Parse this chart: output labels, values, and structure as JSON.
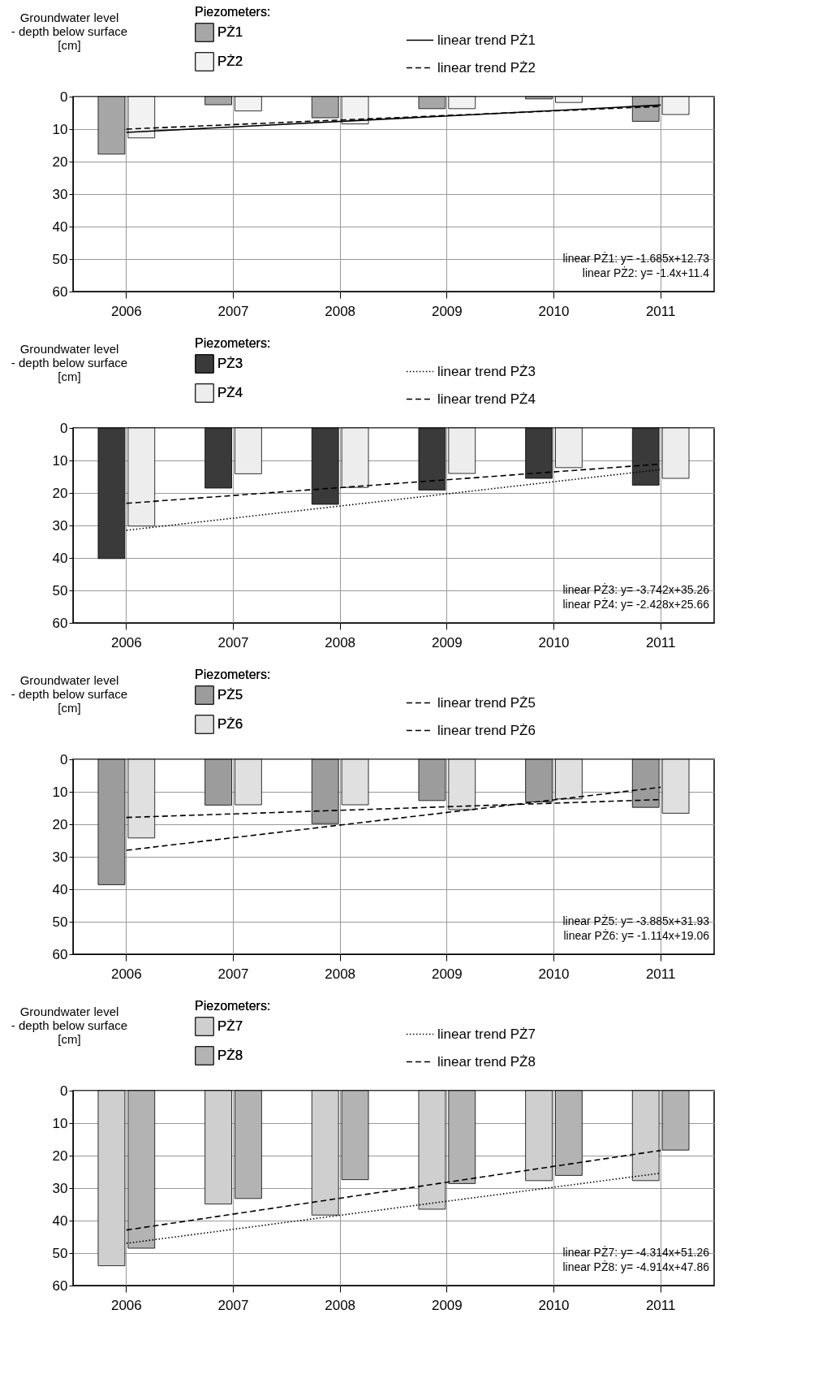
{
  "chart_data": [
    {
      "type": "bar",
      "ylabel": "Groundwater level\n- depth below surface\n[cm]",
      "legend_title": "Piezometers:",
      "legend": "top",
      "grid": true,
      "categories": [
        "2006",
        "2007",
        "2008",
        "2009",
        "2010",
        "2011"
      ],
      "ylim": [
        60,
        0
      ],
      "yticks": [
        0,
        10,
        20,
        30,
        40,
        50,
        60
      ],
      "series": [
        {
          "name": "PŻ1",
          "type": "bar",
          "color": "#a6a6a6",
          "values": [
            17.7,
            2.5,
            6.5,
            3.7,
            0.7,
            7.6
          ]
        },
        {
          "name": "PŻ2",
          "type": "bar",
          "color": "#f2f2f2",
          "values": [
            12.7,
            4.4,
            8.4,
            3.7,
            1.8,
            5.5
          ]
        },
        {
          "name": "linear trend PŻ1",
          "type": "line",
          "color": "#000000",
          "line_style": "solid",
          "values": [
            11.0,
            null,
            null,
            null,
            null,
            2.6
          ]
        },
        {
          "name": "linear trend PŻ2",
          "type": "line",
          "color": "#000000",
          "line_style": "dashed",
          "values": [
            10.0,
            null,
            null,
            null,
            null,
            3.0
          ]
        }
      ],
      "annotations": [
        "linear PŻ1: y= -1.685x+12.73",
        "linear PŻ2: y= -1.4x+11.4"
      ]
    },
    {
      "type": "bar",
      "ylabel": "Groundwater level\n- depth below surface\n[cm]",
      "legend_title": "Piezometers:",
      "legend": "top",
      "grid": true,
      "categories": [
        "2006",
        "2007",
        "2008",
        "2009",
        "2010",
        "2011"
      ],
      "ylim": [
        60,
        0
      ],
      "yticks": [
        0,
        10,
        20,
        30,
        40,
        50,
        60
      ],
      "series": [
        {
          "name": "PŻ3",
          "type": "bar",
          "color": "#3a3a3a",
          "values": [
            40.2,
            18.5,
            23.5,
            19.1,
            15.5,
            17.6
          ]
        },
        {
          "name": "PŻ4",
          "type": "bar",
          "color": "#ededed",
          "values": [
            30.2,
            14.1,
            18.3,
            14.0,
            12.2,
            15.5
          ]
        },
        {
          "name": "linear trend PŻ3",
          "type": "line",
          "color": "#000000",
          "line_style": "dotted",
          "values": [
            31.5,
            null,
            null,
            null,
            null,
            12.8
          ]
        },
        {
          "name": "linear trend PŻ4",
          "type": "line",
          "color": "#000000",
          "line_style": "dashed",
          "values": [
            23.2,
            null,
            null,
            null,
            null,
            11.1
          ]
        }
      ],
      "annotations": [
        "linear PŻ3: y= -3.742x+35.26",
        "linear PŻ4: y= -2.428x+25.66"
      ]
    },
    {
      "type": "bar",
      "ylabel": "Groundwater level\n- depth below surface\n[cm]",
      "legend_title": "Piezometers:",
      "legend": "top",
      "grid": true,
      "categories": [
        "2006",
        "2007",
        "2008",
        "2009",
        "2010",
        "2011"
      ],
      "ylim": [
        60,
        0
      ],
      "yticks": [
        0,
        10,
        20,
        30,
        40,
        50,
        60
      ],
      "series": [
        {
          "name": "PŻ5",
          "type": "bar",
          "color": "#9c9c9c",
          "values": [
            38.6,
            14.1,
            19.8,
            12.7,
            13.1,
            14.8
          ]
        },
        {
          "name": "PŻ6",
          "type": "bar",
          "color": "#e0e0e0",
          "values": [
            24.2,
            14.0,
            14.0,
            15.5,
            12.2,
            16.6
          ]
        },
        {
          "name": "linear trend PŻ5",
          "type": "line",
          "color": "#000000",
          "line_style": "dashed",
          "values": [
            28.0,
            null,
            null,
            null,
            null,
            8.6
          ]
        },
        {
          "name": "linear trend PŻ6",
          "type": "line",
          "color": "#000000",
          "line_style": "dashed",
          "values": [
            17.9,
            null,
            null,
            null,
            null,
            12.4
          ]
        }
      ],
      "annotations": [
        "linear PŻ5: y= -3.885x+31.93",
        "linear PŻ6: y= -1.114x+19.06"
      ]
    },
    {
      "type": "bar",
      "ylabel": "Groundwater level\n- depth below surface\n[cm]",
      "legend_title": "Piezometers:",
      "legend": "top",
      "grid": true,
      "categories": [
        "2006",
        "2007",
        "2008",
        "2009",
        "2010",
        "2011"
      ],
      "ylim": [
        60,
        0
      ],
      "yticks": [
        0,
        10,
        20,
        30,
        40,
        50,
        60
      ],
      "series": [
        {
          "name": "PŻ7",
          "type": "bar",
          "color": "#cfcfcf",
          "values": [
            53.9,
            34.9,
            38.3,
            36.5,
            27.7,
            27.7
          ]
        },
        {
          "name": "PŻ8",
          "type": "bar",
          "color": "#b3b3b3",
          "values": [
            48.5,
            33.2,
            27.4,
            28.6,
            26.1,
            18.3
          ]
        },
        {
          "name": "linear trend PŻ7",
          "type": "line",
          "color": "#000000",
          "line_style": "dotted",
          "values": [
            47.0,
            null,
            null,
            null,
            null,
            25.4
          ]
        },
        {
          "name": "linear trend PŻ8",
          "type": "line",
          "color": "#000000",
          "line_style": "dashed",
          "values": [
            42.9,
            null,
            null,
            null,
            null,
            18.4
          ]
        }
      ],
      "annotations": [
        "linear PŻ7: y= -4.314x+51.26",
        "linear PŻ8: y= -4.914x+47.86"
      ]
    }
  ]
}
